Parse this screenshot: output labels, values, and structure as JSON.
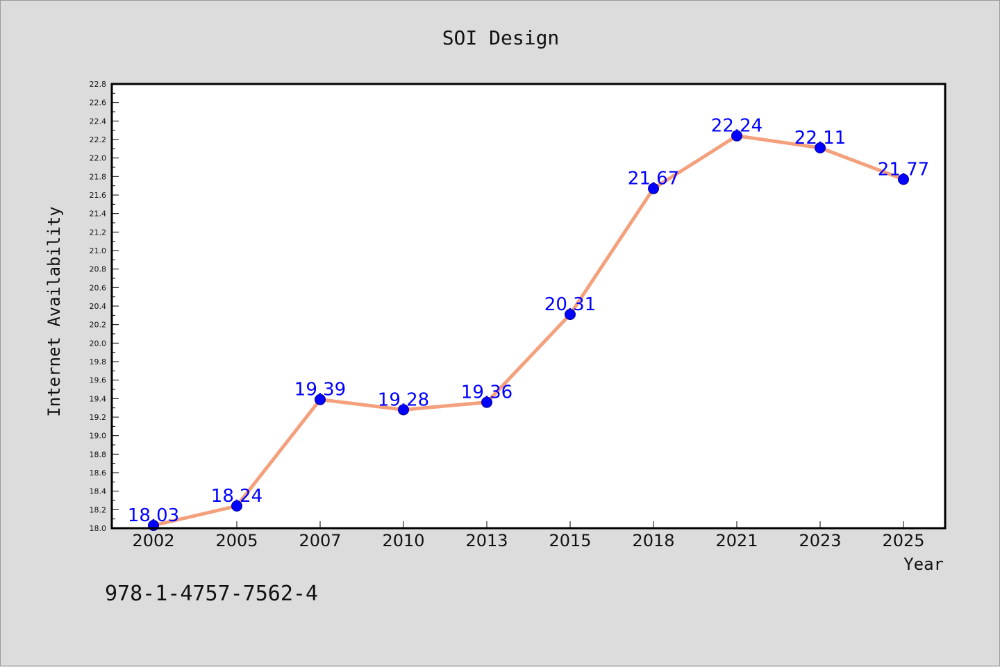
{
  "chart_data": {
    "type": "line",
    "title": "SOI Design",
    "xlabel": "Year",
    "ylabel": "Internet Availability",
    "categories": [
      "2002",
      "2005",
      "2007",
      "2010",
      "2013",
      "2015",
      "2018",
      "2021",
      "2023",
      "2025"
    ],
    "series": [
      {
        "values": [
          18.03,
          18.24,
          19.39,
          19.28,
          19.36,
          20.31,
          21.67,
          22.24,
          22.11,
          21.77
        ]
      }
    ],
    "data_labels": [
      "18.03",
      "18.24",
      "19.39",
      "19.28",
      "19.36",
      "20.31",
      "21.67",
      "22.24",
      "22.11",
      "21.77"
    ],
    "ylim": [
      18.0,
      22.8
    ],
    "yticks": [
      "18.0",
      "18.2",
      "18.4",
      "18.6",
      "18.8",
      "19.0",
      "19.2",
      "19.4",
      "19.6",
      "19.8",
      "20.0",
      "20.2",
      "20.4",
      "20.6",
      "20.8",
      "21.0",
      "21.2",
      "21.4",
      "21.6",
      "21.8",
      "22.0",
      "22.2",
      "22.4",
      "22.6",
      "22.8"
    ],
    "grid": false,
    "legend": "none",
    "colors": {
      "line": "#f4a07c",
      "marker": "#0000ff",
      "data_label": "#0000ff",
      "background": "#dcdcdc",
      "plot_background": "#ffffff"
    }
  },
  "footnote": "978-1-4757-7562-4"
}
